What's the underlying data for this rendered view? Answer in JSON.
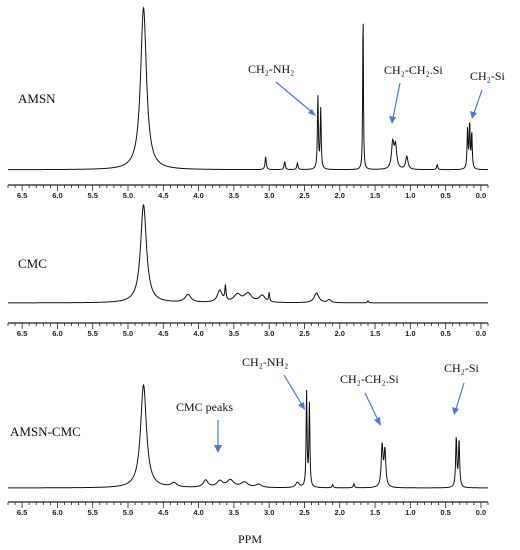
{
  "chart_data": [
    {
      "type": "line",
      "title": "",
      "series": [
        {
          "name": "AMSN"
        }
      ],
      "xlabel": "",
      "ylabel": "",
      "xlim": [
        6.7,
        -0.1
      ],
      "x_direction": "decreasing",
      "ticks": [
        "6.5",
        "6.0",
        "5.5",
        "5.0",
        "4.5",
        "4.0",
        "3.5",
        "3.0",
        "2.5",
        "2.0",
        "1.5",
        "1.0",
        "0.5",
        "0.0"
      ],
      "baseline": 0.07,
      "peaks": [
        {
          "ppm": 4.78,
          "height": 1.0,
          "width": 0.05
        },
        {
          "ppm": 3.05,
          "height": 0.08,
          "width": 0.01
        },
        {
          "ppm": 2.78,
          "height": 0.05,
          "width": 0.01
        },
        {
          "ppm": 2.6,
          "height": 0.04,
          "width": 0.01
        },
        {
          "ppm": 2.31,
          "height": 0.45,
          "width": 0.008
        },
        {
          "ppm": 2.27,
          "height": 0.37,
          "width": 0.008
        },
        {
          "ppm": 1.67,
          "height": 1.0,
          "width": 0.006
        },
        {
          "ppm": 1.25,
          "height": 0.16,
          "width": 0.02
        },
        {
          "ppm": 1.21,
          "height": 0.14,
          "width": 0.02
        },
        {
          "ppm": 1.05,
          "height": 0.08,
          "width": 0.02
        },
        {
          "ppm": 0.62,
          "height": 0.03,
          "width": 0.01
        },
        {
          "ppm": 0.19,
          "height": 0.25,
          "width": 0.008
        },
        {
          "ppm": 0.16,
          "height": 0.28,
          "width": 0.008
        },
        {
          "ppm": 0.13,
          "height": 0.22,
          "width": 0.008
        }
      ],
      "annotations": [
        {
          "text": "CH₂-NH₂",
          "points_to_ppm": 2.31
        },
        {
          "text": "CH₂-CH₂.Si",
          "points_to_ppm": 1.25
        },
        {
          "text": "CH₂-Si",
          "points_to_ppm": 0.16
        }
      ]
    },
    {
      "type": "line",
      "title": "",
      "series": [
        {
          "name": "CMC"
        }
      ],
      "xlabel": "",
      "ylabel": "",
      "xlim": [
        6.7,
        -0.1
      ],
      "x_direction": "decreasing",
      "ticks": [
        "6.5",
        "6.0",
        "5.5",
        "5.0",
        "4.5",
        "4.0",
        "3.5",
        "3.0",
        "2.5",
        "2.0",
        "1.5",
        "1.0",
        "0.5",
        "0.0"
      ],
      "baseline": 0.03,
      "peaks": [
        {
          "ppm": 4.78,
          "height": 1.0,
          "width": 0.05
        },
        {
          "ppm": 4.15,
          "height": 0.08,
          "width": 0.05
        },
        {
          "ppm": 3.7,
          "height": 0.12,
          "width": 0.04
        },
        {
          "ppm": 3.62,
          "height": 0.15,
          "width": 0.01
        },
        {
          "ppm": 3.45,
          "height": 0.08,
          "width": 0.06
        },
        {
          "ppm": 3.3,
          "height": 0.09,
          "width": 0.06
        },
        {
          "ppm": 3.1,
          "height": 0.07,
          "width": 0.05
        },
        {
          "ppm": 3.0,
          "height": 0.09,
          "width": 0.008
        },
        {
          "ppm": 2.33,
          "height": 0.1,
          "width": 0.04
        },
        {
          "ppm": 2.15,
          "height": 0.03,
          "width": 0.03
        },
        {
          "ppm": 1.6,
          "height": 0.02,
          "width": 0.01
        }
      ]
    },
    {
      "type": "line",
      "title": "",
      "series": [
        {
          "name": "AMSN-CMC"
        }
      ],
      "xlabel": "PPM",
      "ylabel": "",
      "xlim": [
        6.7,
        -0.1
      ],
      "x_direction": "decreasing",
      "ticks": [
        "6.5",
        "6.0",
        "5.5",
        "5.0",
        "4.5",
        "4.0",
        "3.5",
        "3.0",
        "2.5",
        "2.0",
        "1.5",
        "1.0",
        "0.5",
        "0.0"
      ],
      "baseline": 0.02,
      "peaks": [
        {
          "ppm": 4.78,
          "height": 1.0,
          "width": 0.05
        },
        {
          "ppm": 4.35,
          "height": 0.04,
          "width": 0.05
        },
        {
          "ppm": 3.9,
          "height": 0.07,
          "width": 0.04
        },
        {
          "ppm": 3.7,
          "height": 0.06,
          "width": 0.05
        },
        {
          "ppm": 3.55,
          "height": 0.07,
          "width": 0.06
        },
        {
          "ppm": 3.35,
          "height": 0.05,
          "width": 0.06
        },
        {
          "ppm": 3.15,
          "height": 0.03,
          "width": 0.05
        },
        {
          "ppm": 2.6,
          "height": 0.05,
          "width": 0.03
        },
        {
          "ppm": 2.47,
          "height": 0.92,
          "width": 0.008
        },
        {
          "ppm": 2.43,
          "height": 0.8,
          "width": 0.008
        },
        {
          "ppm": 2.1,
          "height": 0.03,
          "width": 0.01
        },
        {
          "ppm": 1.8,
          "height": 0.04,
          "width": 0.01
        },
        {
          "ppm": 1.4,
          "height": 0.4,
          "width": 0.015
        },
        {
          "ppm": 1.36,
          "height": 0.35,
          "width": 0.015
        },
        {
          "ppm": 0.35,
          "height": 0.48,
          "width": 0.01
        },
        {
          "ppm": 0.31,
          "height": 0.45,
          "width": 0.01
        }
      ],
      "annotations": [
        {
          "text": "CMC peaks",
          "points_to_ppm": 3.75
        },
        {
          "text": "CH₂-NH₂",
          "points_to_ppm": 2.47
        },
        {
          "text": "CH₂-CH₂.Si",
          "points_to_ppm": 1.38
        },
        {
          "text": "CH₂-Si",
          "points_to_ppm": 0.33
        }
      ]
    }
  ],
  "colors": {
    "trace": "#111111",
    "axis": "#222222",
    "arrow": "#4a7ccf"
  }
}
